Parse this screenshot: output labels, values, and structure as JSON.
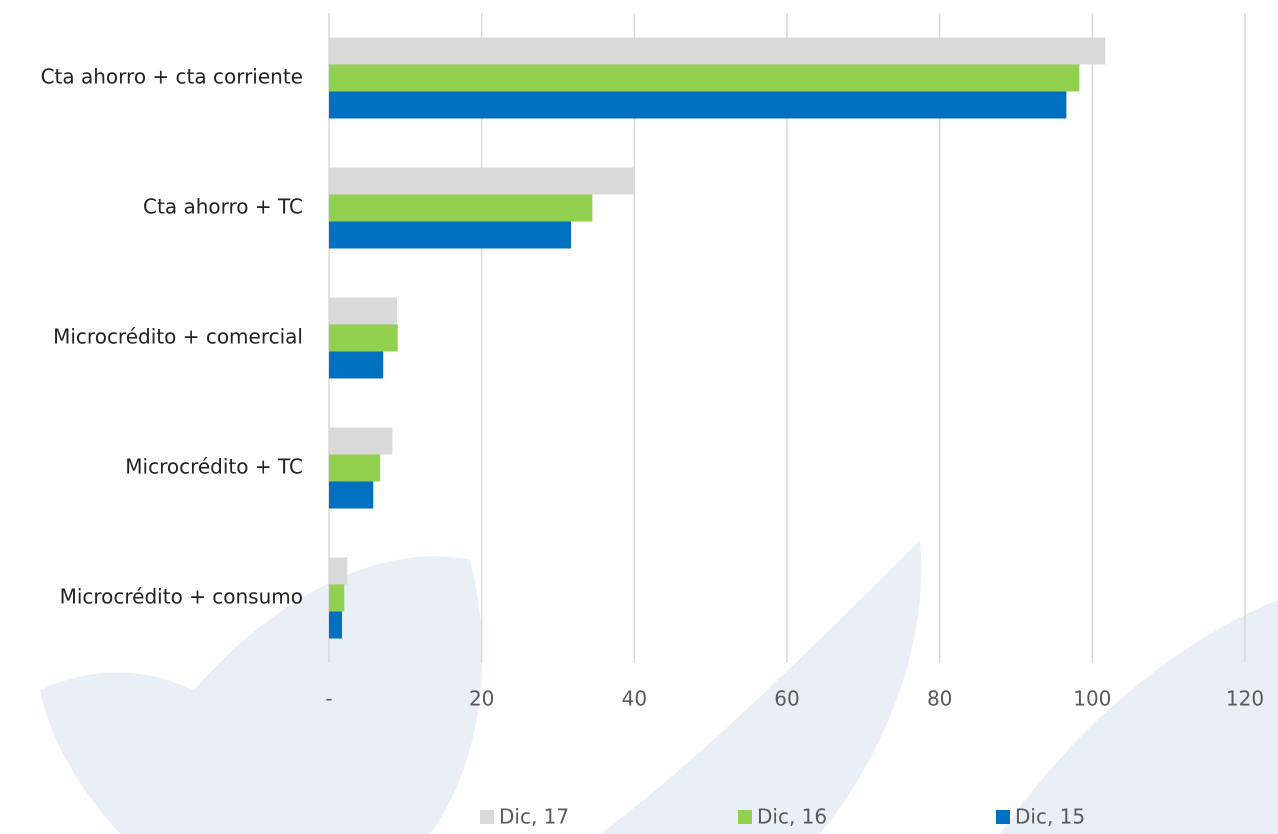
{
  "chart_data": {
    "type": "barh",
    "categories": [
      "Cta ahorro + cta corriente",
      "Cta ahorro + TC",
      "Microcrédito + comercial",
      "Microcrédito + TC",
      "Microcrédito + consumo"
    ],
    "series": [
      {
        "name": "Dic, 17",
        "color": "#d9d9d9",
        "values": [
          101.7,
          40.0,
          8.9,
          8.3,
          2.4
        ]
      },
      {
        "name": "Dic, 16",
        "color": "#92d050",
        "values": [
          98.3,
          34.5,
          9.0,
          6.7,
          2.0
        ]
      },
      {
        "name": "Dic, 15",
        "color": "#0070c0",
        "values": [
          96.6,
          31.7,
          7.1,
          5.8,
          1.7
        ]
      }
    ],
    "xlim": [
      0,
      120
    ],
    "xticks": [
      {
        "value": 0,
        "label": "-"
      },
      20,
      40,
      60,
      80,
      100,
      120
    ],
    "grid": true,
    "legend": "bottom"
  }
}
